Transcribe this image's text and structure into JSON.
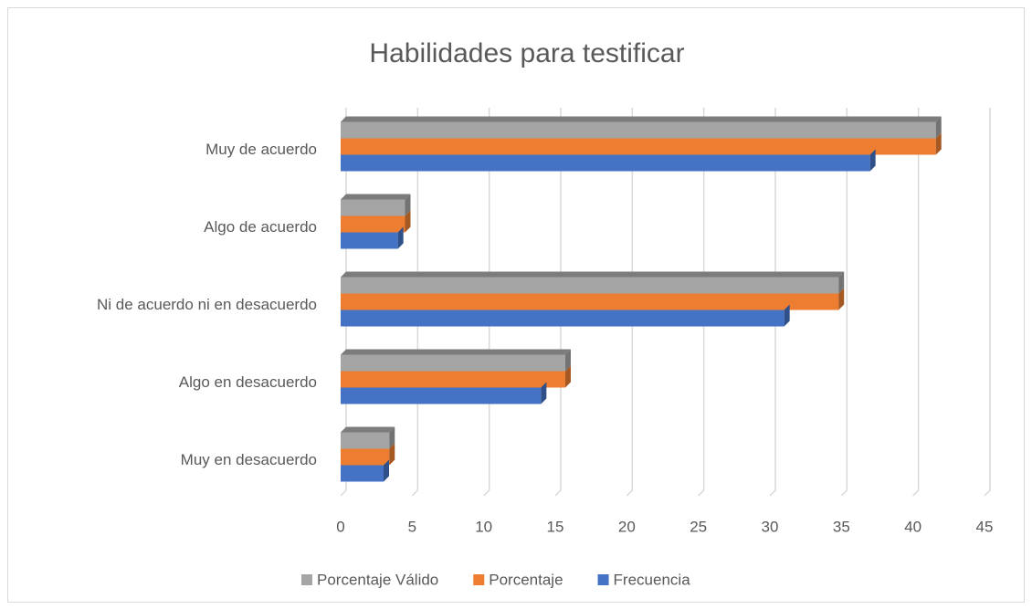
{
  "chart_data": {
    "type": "bar",
    "orientation": "horizontal",
    "title": "Habilidades para testificar",
    "categories": [
      "Muy de acuerdo",
      "Algo de acuerdo",
      "Ni de acuerdo ni en desacuerdo",
      "Algo en desacuerdo",
      "Muy en desacuerdo"
    ],
    "series": [
      {
        "name": "Porcentaje Válido",
        "color": "#a5a5a5",
        "values": [
          41.6,
          4.5,
          34.8,
          15.7,
          3.4
        ]
      },
      {
        "name": "Porcentaje",
        "color": "#ed7d31",
        "values": [
          41.6,
          4.5,
          34.8,
          15.7,
          3.4
        ]
      },
      {
        "name": "Frecuencia",
        "color": "#4472c4",
        "values": [
          37,
          4,
          31,
          14,
          3
        ]
      }
    ],
    "xlim": [
      0,
      45
    ],
    "xticks": [
      0,
      5,
      10,
      15,
      20,
      25,
      30,
      35,
      40,
      45
    ],
    "grid": true,
    "legend": "bottom"
  }
}
